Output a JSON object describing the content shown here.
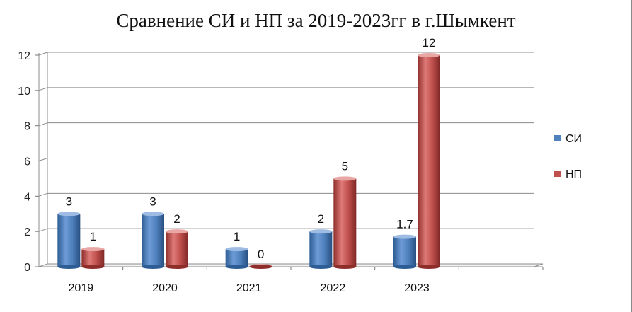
{
  "chart_data": {
    "type": "bar",
    "title": "Сравнение СИ и НП за 2019-2023гг в г.Шымкент",
    "categories": [
      "2019",
      "2020",
      "2021",
      "2022",
      "2023",
      ""
    ],
    "series": [
      {
        "name": "СИ",
        "values": [
          3,
          3,
          1,
          2,
          1.7,
          null
        ],
        "labels": [
          "3",
          "3",
          "1",
          "2",
          "1.7",
          ""
        ],
        "color": "#4f81bd"
      },
      {
        "name": "НП",
        "values": [
          1,
          2,
          0,
          5,
          12,
          null
        ],
        "labels": [
          "1",
          "2",
          "0",
          "5",
          "12",
          ""
        ],
        "color": "#c0504d"
      }
    ],
    "xlabel": "",
    "ylabel": "",
    "ylim": [
      0,
      12
    ],
    "yticks": [
      "0",
      "2",
      "4",
      "6",
      "8",
      "10",
      "12"
    ],
    "grid": true,
    "legend": "right",
    "style": "3d-cylinder"
  }
}
